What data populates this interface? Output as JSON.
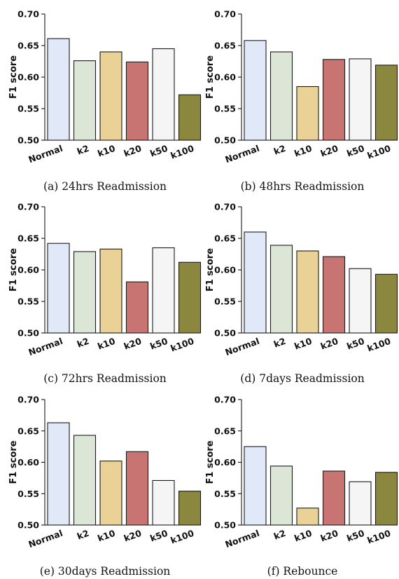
{
  "colors": [
    "#e1e8f7",
    "#dbe6d6",
    "#ead196",
    "#c87472",
    "#f5f5f5",
    "#8b873f"
  ],
  "chart_data": [
    {
      "type": "bar",
      "caption": "(a) 24hrs Readmission",
      "ylabel": "F1 score",
      "ylim": [
        0.5,
        0.7
      ],
      "yticks": [
        "0.50",
        "0.55",
        "0.60",
        "0.65",
        "0.70"
      ],
      "categories": [
        "Normal",
        "k2",
        "k10",
        "k20",
        "k50",
        "k100"
      ],
      "values": [
        0.661,
        0.626,
        0.64,
        0.624,
        0.645,
        0.572
      ]
    },
    {
      "type": "bar",
      "caption": "(b) 48hrs Readmission",
      "ylabel": "F1 score",
      "ylim": [
        0.5,
        0.7
      ],
      "yticks": [
        "0.50",
        "0.55",
        "0.60",
        "0.65",
        "0.70"
      ],
      "categories": [
        "Normal",
        "k2",
        "k10",
        "k20",
        "k50",
        "k100"
      ],
      "values": [
        0.658,
        0.64,
        0.585,
        0.628,
        0.629,
        0.619
      ]
    },
    {
      "type": "bar",
      "caption": "(c) 72hrs Readmission",
      "ylabel": "F1 score",
      "ylim": [
        0.5,
        0.7
      ],
      "yticks": [
        "0.50",
        "0.55",
        "0.60",
        "0.65",
        "0.70"
      ],
      "categories": [
        "Normal",
        "k2",
        "k10",
        "k20",
        "k50",
        "k100"
      ],
      "values": [
        0.642,
        0.629,
        0.633,
        0.581,
        0.635,
        0.612
      ]
    },
    {
      "type": "bar",
      "caption": "(d) 7days Readmission",
      "ylabel": "F1 score",
      "ylim": [
        0.5,
        0.7
      ],
      "yticks": [
        "0.50",
        "0.55",
        "0.60",
        "0.65",
        "0.70"
      ],
      "categories": [
        "Normal",
        "k2",
        "k10",
        "k20",
        "k50",
        "k100"
      ],
      "values": [
        0.66,
        0.639,
        0.63,
        0.621,
        0.602,
        0.593
      ]
    },
    {
      "type": "bar",
      "caption": "(e) 30days Readmission",
      "ylabel": "F1 score",
      "ylim": [
        0.5,
        0.7
      ],
      "yticks": [
        "0.50",
        "0.55",
        "0.60",
        "0.65",
        "0.70"
      ],
      "categories": [
        "Normal",
        "k2",
        "k10",
        "k20",
        "k50",
        "k100"
      ],
      "values": [
        0.663,
        0.643,
        0.602,
        0.617,
        0.571,
        0.554
      ]
    },
    {
      "type": "bar",
      "caption": "(f) Rebounce",
      "ylabel": "F1 score",
      "ylim": [
        0.5,
        0.7
      ],
      "yticks": [
        "0.50",
        "0.55",
        "0.60",
        "0.65",
        "0.70"
      ],
      "categories": [
        "Normal",
        "k2",
        "k10",
        "k20",
        "k50",
        "k100"
      ],
      "values": [
        0.625,
        0.594,
        0.527,
        0.586,
        0.569,
        0.584
      ]
    }
  ]
}
